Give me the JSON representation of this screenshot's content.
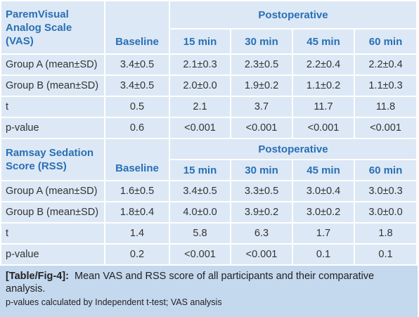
{
  "sections": [
    {
      "title": "ParemVisual Analog Scale (VAS)",
      "baseline": "Baseline",
      "group": "Postoperative",
      "columns": [
        "15 min",
        "30 min",
        "45 min",
        "60 min"
      ],
      "rows": [
        [
          "Group A (mean±SD)",
          "3.4±0.5",
          "2.1±0.3",
          "2.3±0.5",
          "2.2±0.4",
          "2.2±0.4"
        ],
        [
          "Group B (mean±SD)",
          "3.4±0.5",
          "2.0±0.0",
          "1.9±0.2",
          "1.1±0.2",
          "1.1±0.3"
        ],
        [
          "t",
          "0.5",
          "2.1",
          "3.7",
          "11.7",
          "11.8"
        ],
        [
          "p-value",
          "0.6",
          "<0.001",
          "<0.001",
          "<0.001",
          "<0.001"
        ]
      ]
    },
    {
      "title": "Ramsay Sedation Score (RSS)",
      "baseline": "Baseline",
      "group": "Postoperative",
      "columns": [
        "15 min",
        "30 min",
        "45 min",
        "60 min"
      ],
      "rows": [
        [
          "Group A (mean±SD)",
          "1.6±0.5",
          "3.4±0.5",
          "3.3±0.5",
          "3.0±0.4",
          "3.0±0.3"
        ],
        [
          "Group B (mean±SD)",
          "1.8±0.4",
          "4.0±0.0",
          "3.9±0.2",
          "3.0±0.2",
          "3.0±0.0"
        ],
        [
          "t",
          "1.4",
          "5.8",
          "6.3",
          "1.7",
          "1.8"
        ],
        [
          "p-value",
          "0.2",
          "<0.001",
          "<0.001",
          "0.1",
          "0.1"
        ]
      ]
    }
  ],
  "caption": {
    "label": "[Table/Fig-4]:",
    "text": "Mean VAS and RSS score of all participants and their comparative analysis.",
    "note": "p-values calculated by Independent t-test; VAS analysis"
  }
}
